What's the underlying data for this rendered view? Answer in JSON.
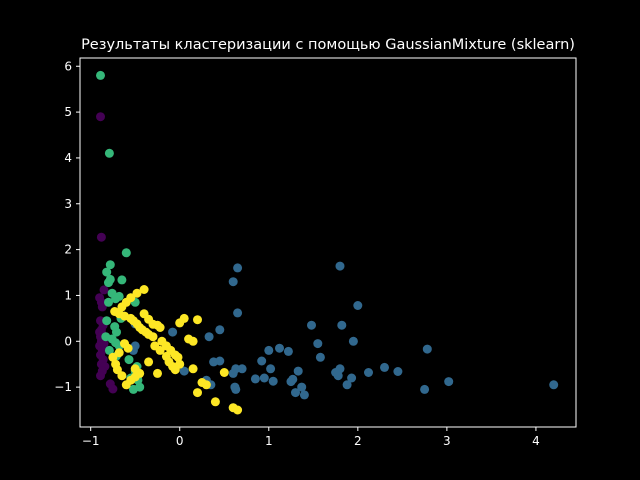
{
  "chart_data": {
    "type": "scatter",
    "title": "Результаты кластеризации с помощью GaussianMixture (sklearn)",
    "xlabel": "",
    "ylabel": "",
    "xlim": [
      -1.12,
      4.45
    ],
    "ylim": [
      -1.87,
      6.18
    ],
    "xticks": [
      -1,
      0,
      1,
      2,
      3,
      4
    ],
    "yticks": [
      -1,
      0,
      1,
      2,
      3,
      4,
      5,
      6
    ],
    "grid": false,
    "background": "#000000",
    "series": [
      {
        "color": "#440154",
        "x": [
          -0.89,
          -0.88,
          -0.85,
          -0.9,
          -0.88,
          -0.87,
          -0.89,
          -0.86,
          -0.88,
          -0.9,
          -0.87,
          -0.89,
          -0.86,
          -0.88,
          -0.85,
          -0.9,
          -0.87,
          -0.89,
          -0.86,
          -0.88,
          -0.84,
          -0.87,
          -0.89,
          -0.78,
          -0.75
        ],
        "y": [
          4.9,
          2.27,
          1.12,
          0.95,
          0.85,
          0.75,
          0.45,
          0.35,
          0.25,
          0.2,
          0.15,
          0.1,
          0.05,
          0.0,
          -0.05,
          -0.1,
          -0.2,
          -0.3,
          -0.4,
          -0.5,
          -0.55,
          -0.65,
          -0.75,
          -0.93,
          -1.04
        ]
      },
      {
        "color": "#31688e",
        "x": [
          4.2,
          3.02,
          2.78,
          2.75,
          2.45,
          2.3,
          2.12,
          2.0,
          1.95,
          1.93,
          1.88,
          1.82,
          1.8,
          1.8,
          1.78,
          1.75,
          1.58,
          1.55,
          1.48,
          1.4,
          1.37,
          1.33,
          1.3,
          1.27,
          1.25,
          1.22,
          1.12,
          1.05,
          1.02,
          1.0,
          0.95,
          0.92,
          0.85,
          0.7,
          0.65,
          0.65,
          0.63,
          0.63,
          0.62,
          0.6,
          0.6,
          0.6,
          0.45,
          0.45,
          0.38,
          0.35,
          0.33,
          0.3,
          0.05,
          -0.08,
          -0.5,
          -0.5,
          -0.52
        ],
        "y": [
          -0.95,
          -0.88,
          -0.17,
          -1.05,
          -0.66,
          -0.57,
          -0.68,
          0.78,
          0.0,
          -0.8,
          -0.95,
          0.35,
          1.64,
          -0.6,
          -0.75,
          -0.68,
          -0.35,
          -0.05,
          0.35,
          -1.17,
          -1.0,
          -0.65,
          -1.12,
          -0.83,
          -0.88,
          -0.22,
          -0.15,
          -0.87,
          -0.6,
          -0.2,
          -0.8,
          -0.43,
          -0.82,
          -0.6,
          1.6,
          0.62,
          -0.6,
          -1.05,
          -1.0,
          -0.7,
          1.3,
          -1.45,
          -0.43,
          0.25,
          -0.45,
          -0.95,
          0.1,
          -0.85,
          -0.65,
          0.2,
          -0.1,
          0.38,
          -0.2
        ]
      },
      {
        "color": "#35b779",
        "x": [
          -0.89,
          -0.79,
          -0.6,
          -0.78,
          -0.82,
          -0.78,
          -0.8,
          -0.65,
          -0.76,
          -0.68,
          -0.8,
          -0.72,
          -0.66,
          -0.55,
          -0.5,
          -0.82,
          -0.73,
          -0.71,
          -0.83,
          -0.76,
          -0.72,
          -0.68,
          -0.79,
          -0.71,
          -0.57,
          -0.48,
          -0.5,
          -0.47,
          -0.47,
          -0.45,
          -0.52,
          -0.55
        ],
        "y": [
          5.8,
          4.1,
          1.93,
          1.67,
          1.51,
          1.35,
          1.28,
          1.34,
          1.05,
          0.98,
          0.85,
          0.93,
          0.5,
          0.95,
          0.85,
          0.45,
          0.32,
          0.2,
          0.1,
          0.05,
          -0.03,
          -0.1,
          -0.2,
          -0.32,
          -0.4,
          -0.55,
          -0.65,
          -0.75,
          -0.85,
          -1.0,
          -1.05,
          -0.8
        ]
      },
      {
        "color": "#fde725",
        "x": [
          -0.4,
          -0.48,
          -0.55,
          -0.6,
          -0.65,
          -0.73,
          -0.68,
          -0.62,
          -0.55,
          -0.52,
          -0.48,
          -0.45,
          -0.42,
          -0.38,
          -0.35,
          -0.3,
          -0.25,
          -0.22,
          -0.2,
          -0.15,
          -0.1,
          -0.05,
          -0.02,
          0.0,
          0.05,
          0.1,
          0.15,
          0.2,
          0.2,
          0.25,
          0.3,
          0.4,
          0.5,
          0.6,
          0.65,
          -0.4,
          -0.35,
          -0.3,
          -0.28,
          -0.22,
          -0.15,
          -0.12,
          -0.08,
          -0.05,
          -0.45,
          -0.5,
          -0.55,
          -0.6,
          -0.65,
          -0.7,
          -0.72,
          -0.75,
          -0.68,
          -0.58,
          -0.62,
          -0.5,
          -0.35,
          -0.25,
          0.0,
          0.15
        ],
        "y": [
          1.13,
          1.05,
          0.95,
          0.85,
          0.75,
          0.65,
          0.6,
          0.55,
          0.5,
          0.45,
          0.38,
          0.3,
          0.25,
          0.2,
          0.15,
          0.1,
          0.35,
          0.3,
          0.0,
          -0.1,
          -0.2,
          -0.3,
          -0.35,
          0.4,
          0.5,
          0.05,
          0.0,
          0.47,
          -1.12,
          -0.9,
          -0.95,
          -1.32,
          -0.68,
          -1.45,
          -1.5,
          0.6,
          0.48,
          0.37,
          -0.1,
          -0.2,
          -0.33,
          -0.45,
          -0.55,
          -0.62,
          -0.7,
          -0.78,
          -0.85,
          -0.95,
          -0.75,
          -0.62,
          -0.5,
          -0.35,
          -0.25,
          -0.15,
          -0.05,
          -0.6,
          -0.45,
          -0.7,
          -0.5,
          -0.6
        ]
      }
    ]
  }
}
